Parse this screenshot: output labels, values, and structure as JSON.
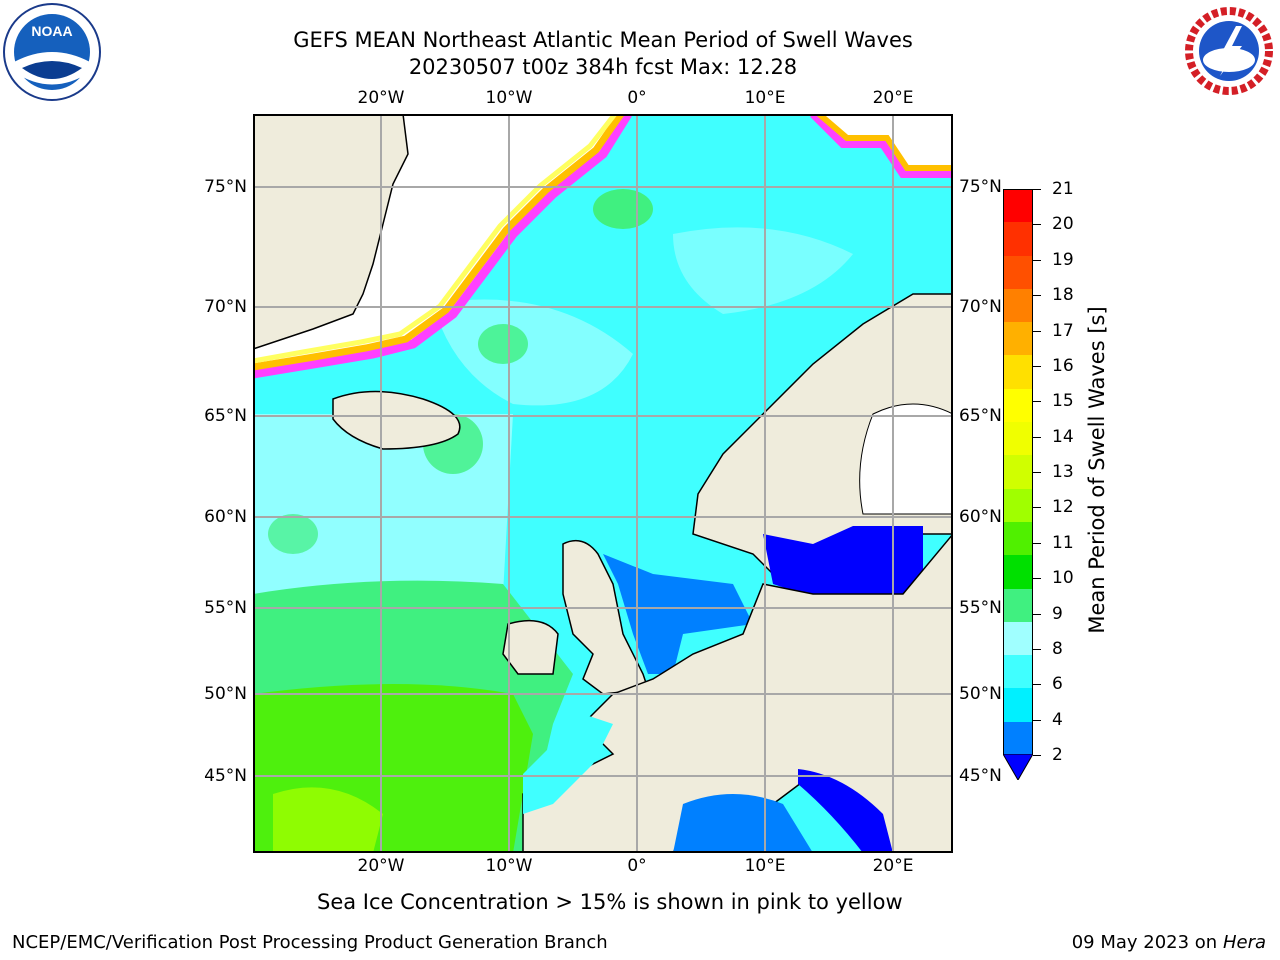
{
  "title": {
    "line1": "GEFS MEAN Northeast Atlantic Mean Period of Swell Waves",
    "line2": "20230507 t00z 384h fcst   Max: 12.28"
  },
  "map": {
    "lon_labels": [
      "20°W",
      "10°W",
      "0°",
      "10°E",
      "20°E"
    ],
    "lat_labels": [
      "75°N",
      "70°N",
      "65°N",
      "60°N",
      "55°N",
      "50°N",
      "45°N"
    ],
    "land_color": "#efecdc",
    "ocean_dominant_color": "#00ffff",
    "ice_edge_colors": [
      "#ff40ff",
      "#ffc000",
      "#ffff60"
    ],
    "note": "Sea Ice Concentration > 15% is shown in pink to yellow"
  },
  "colorbar": {
    "label": "Mean Period of Swell Waves [s]",
    "ticks": [
      "21",
      "20",
      "19",
      "18",
      "17",
      "16",
      "15",
      "14",
      "13",
      "12",
      "11",
      "10",
      "9",
      "8",
      "6",
      "4",
      "2"
    ],
    "colors": [
      "#ff0000",
      "#ff3000",
      "#ff5000",
      "#ff8000",
      "#ffb000",
      "#ffe000",
      "#ffff00",
      "#f0ff00",
      "#d0ff00",
      "#a0ff00",
      "#50f000",
      "#00e000",
      "#40f080",
      "#a0ffff",
      "#40ffff",
      "#00f0ff",
      "#0080ff"
    ],
    "under_color": "#0000ff"
  },
  "logos": {
    "left": "NOAA",
    "right": "NATIONAL WEATHER SERVICE"
  },
  "footer": {
    "left": "NCEP/EMC/Verification Post Processing Product Generation Branch",
    "right_date": "09 May 2023 on",
    "right_host": "Hera"
  }
}
